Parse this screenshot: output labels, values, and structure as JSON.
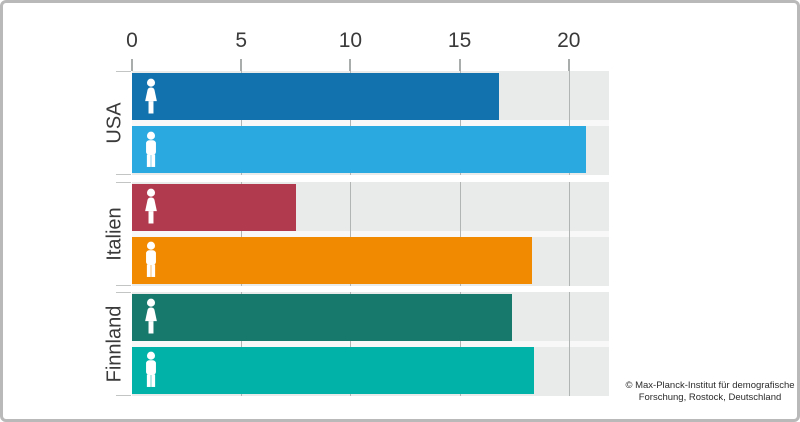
{
  "frame": {
    "background": "#ffffff",
    "border_color": "#b9b9b9"
  },
  "chart_data": {
    "type": "bar",
    "orientation": "horizontal",
    "title": "",
    "xlabel": "",
    "ylabel": "",
    "axis": {
      "position": "top",
      "ticks": [
        0,
        5,
        10,
        15,
        20
      ],
      "max": 21.84,
      "grid": true
    },
    "panel_background": "#e9ebea",
    "gridline_color": "#b1b5b4",
    "categories": [
      "USA",
      "Italien",
      "Finnland"
    ],
    "series": [
      {
        "icon": "female-icon",
        "name": "female",
        "values": [
          16.8,
          7.5,
          17.4
        ],
        "colors": [
          "#1272ad",
          "#b23a4e",
          "#17786c"
        ]
      },
      {
        "icon": "male-icon",
        "name": "male",
        "values": [
          20.8,
          18.3,
          18.4
        ],
        "colors": [
          "#29a9e0",
          "#f18a00",
          "#00b2a8"
        ]
      }
    ],
    "legend_position": "none"
  },
  "footer": {
    "copyright_line1": "© Max-Planck-Institut für demografische",
    "copyright_line2": "Forschung, Rostock, Deutschland"
  }
}
